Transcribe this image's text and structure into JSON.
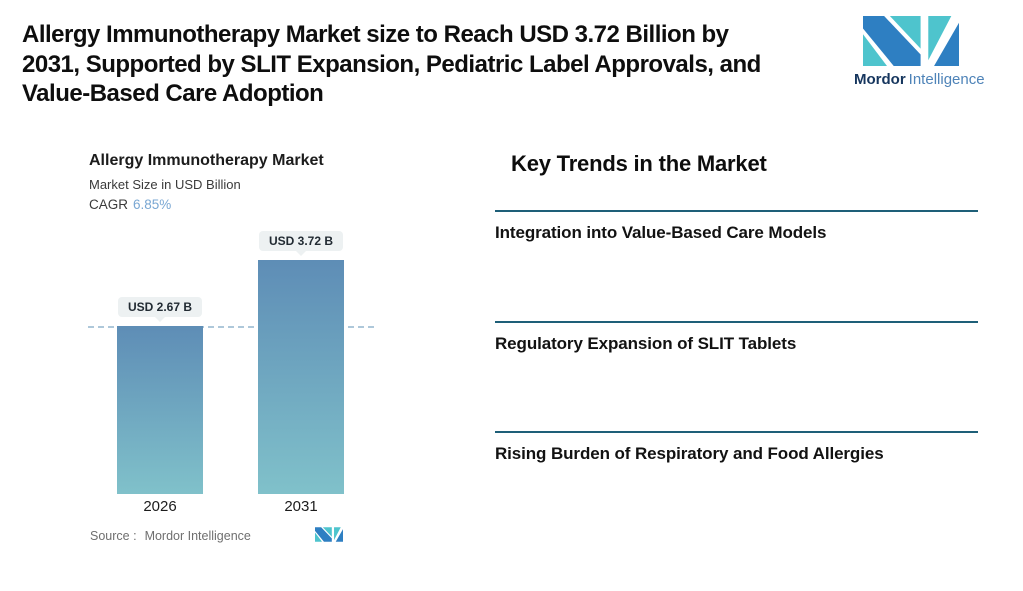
{
  "header": {
    "headline": "Allergy Immunotherapy Market size to Reach USD 3.72 Billion by\n2031, Supported by SLIT Expansion, Pediatric Label Approvals, and\nValue-Based Care Adoption",
    "brand": {
      "name": "Mordor",
      "suffix": "Intelligence"
    }
  },
  "chart": {
    "title": "Allergy Immunotherapy Market",
    "subtitle": "Market Size in USD Billion",
    "cagr_label": "CAGR",
    "cagr_value": "6.85%",
    "source_label": "Source :",
    "source_value": "Mordor Intelligence",
    "bars": [
      {
        "year": "2026",
        "label": "USD 2.67 B"
      },
      {
        "year": "2031",
        "label": "USD 3.72 B"
      }
    ]
  },
  "chart_data": {
    "type": "bar",
    "title": "Allergy Immunotherapy Market",
    "subtitle": "Market Size in USD Billion",
    "unit": "USD Billion",
    "categories": [
      "2026",
      "2031"
    ],
    "values": [
      2.67,
      3.72
    ],
    "data_labels": [
      "USD 2.67 B",
      "USD 3.72 B"
    ],
    "cagr": "6.85%",
    "reference_line": {
      "value": 2.67,
      "style": "dashed"
    },
    "ylim": [
      0,
      4
    ],
    "grid": false,
    "legend": "none",
    "source": "Source :  Mordor Intelligence"
  },
  "trends": {
    "heading": "Key Trends in the Market",
    "items": [
      "Integration into Value-Based Care Models",
      "Regulatory Expansion of SLIT Tablets",
      "Rising Burden of Respiratory and Food Allergies"
    ]
  },
  "colors": {
    "bar_top": "#5e8db6",
    "bar_bottom": "#80c1ca",
    "dashed_line": "#aec8da",
    "divider": "#1e5f78",
    "cagr_value": "#79a7d3",
    "logo_blue": "#2e7fc2",
    "logo_teal": "#4ec4cd",
    "logo_text_dark": "#16365e",
    "logo_text_light": "#4e83b8"
  }
}
